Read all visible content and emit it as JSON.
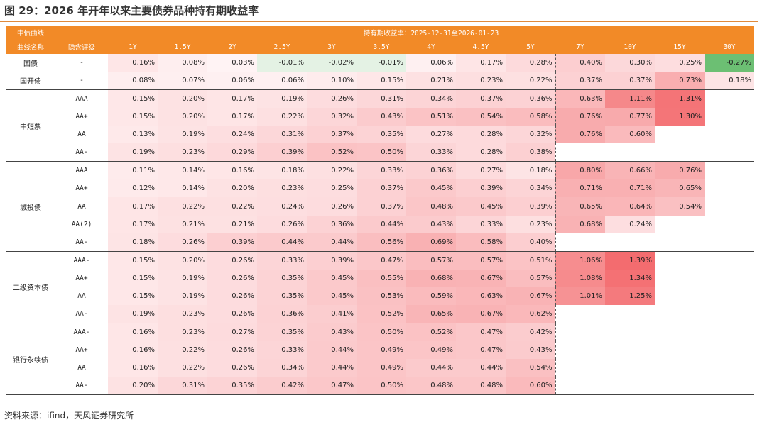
{
  "title": "图 29：2026 年开年以来主要债券品种持有期收益率",
  "source": "资料来源：ifind，天风证券研究所",
  "header": {
    "col1_top": "中债曲线",
    "period_label": "持有期收益率：2025-12-31至2026-01-23",
    "col1": "曲线名称",
    "col2": "隐含评级"
  },
  "chart_data": {
    "type": "table",
    "tenors": [
      "1Y",
      "1.5Y",
      "2Y",
      "2.5Y",
      "3Y",
      "3.5Y",
      "4Y",
      "4.5Y",
      "5Y",
      "7Y",
      "10Y",
      "15Y",
      "30Y"
    ],
    "unit": "%",
    "groups": [
      {
        "name": "国债",
        "rows": [
          {
            "rating": "-",
            "values": [
              0.16,
              0.08,
              0.03,
              -0.01,
              -0.02,
              -0.01,
              0.06,
              0.17,
              0.28,
              0.4,
              0.3,
              0.25,
              -0.27
            ]
          }
        ]
      },
      {
        "name": "国开债",
        "rows": [
          {
            "rating": "-",
            "values": [
              0.08,
              0.07,
              0.06,
              0.06,
              0.1,
              0.15,
              0.21,
              0.23,
              0.22,
              0.37,
              0.37,
              0.73,
              0.18
            ]
          }
        ]
      },
      {
        "name": "中短票",
        "rows": [
          {
            "rating": "AAA",
            "values": [
              0.15,
              0.2,
              0.17,
              0.19,
              0.26,
              0.31,
              0.34,
              0.37,
              0.36,
              0.63,
              1.11,
              1.31,
              null
            ]
          },
          {
            "rating": "AA+",
            "values": [
              0.15,
              0.2,
              0.17,
              0.22,
              0.32,
              0.43,
              0.51,
              0.54,
              0.58,
              0.76,
              0.77,
              1.3,
              null
            ]
          },
          {
            "rating": "AA",
            "values": [
              0.13,
              0.19,
              0.24,
              0.31,
              0.37,
              0.35,
              0.27,
              0.28,
              0.32,
              0.76,
              0.6,
              null,
              null
            ]
          },
          {
            "rating": "AA-",
            "values": [
              0.19,
              0.23,
              0.29,
              0.39,
              0.52,
              0.5,
              0.33,
              0.28,
              0.38,
              null,
              null,
              null,
              null
            ]
          }
        ]
      },
      {
        "name": "城投债",
        "rows": [
          {
            "rating": "AAA",
            "values": [
              0.11,
              0.14,
              0.16,
              0.18,
              0.22,
              0.33,
              0.36,
              0.27,
              0.18,
              0.8,
              0.66,
              0.76,
              null
            ]
          },
          {
            "rating": "AA+",
            "values": [
              0.12,
              0.14,
              0.2,
              0.23,
              0.25,
              0.37,
              0.45,
              0.39,
              0.34,
              0.71,
              0.71,
              0.65,
              null
            ]
          },
          {
            "rating": "AA",
            "values": [
              0.17,
              0.22,
              0.22,
              0.24,
              0.26,
              0.37,
              0.48,
              0.45,
              0.39,
              0.65,
              0.64,
              0.54,
              null
            ]
          },
          {
            "rating": "AA(2)",
            "values": [
              0.17,
              0.21,
              0.21,
              0.26,
              0.36,
              0.44,
              0.43,
              0.33,
              0.23,
              0.68,
              0.24,
              null,
              null
            ]
          },
          {
            "rating": "AA-",
            "values": [
              0.18,
              0.26,
              0.39,
              0.44,
              0.44,
              0.56,
              0.69,
              0.58,
              0.4,
              null,
              null,
              null,
              null
            ]
          }
        ]
      },
      {
        "name": "二级资本债",
        "rows": [
          {
            "rating": "AAA-",
            "values": [
              0.15,
              0.2,
              0.26,
              0.33,
              0.39,
              0.47,
              0.57,
              0.57,
              0.51,
              1.06,
              1.39,
              null,
              null
            ]
          },
          {
            "rating": "AA+",
            "values": [
              0.15,
              0.19,
              0.26,
              0.35,
              0.45,
              0.55,
              0.68,
              0.67,
              0.57,
              1.08,
              1.34,
              null,
              null
            ]
          },
          {
            "rating": "AA",
            "values": [
              0.15,
              0.19,
              0.26,
              0.35,
              0.45,
              0.53,
              0.59,
              0.63,
              0.67,
              1.01,
              1.25,
              null,
              null
            ]
          },
          {
            "rating": "AA-",
            "values": [
              0.19,
              0.23,
              0.26,
              0.36,
              0.41,
              0.52,
              0.65,
              0.67,
              0.62,
              null,
              null,
              null,
              null
            ]
          }
        ]
      },
      {
        "name": "银行永续债",
        "rows": [
          {
            "rating": "AAA-",
            "values": [
              0.16,
              0.23,
              0.27,
              0.35,
              0.43,
              0.5,
              0.52,
              0.47,
              0.42,
              null,
              null,
              null,
              null
            ]
          },
          {
            "rating": "AA+",
            "values": [
              0.16,
              0.22,
              0.26,
              0.33,
              0.44,
              0.49,
              0.49,
              0.47,
              0.43,
              null,
              null,
              null,
              null
            ]
          },
          {
            "rating": "AA",
            "values": [
              0.16,
              0.22,
              0.26,
              0.34,
              0.44,
              0.49,
              0.44,
              0.44,
              0.54,
              null,
              null,
              null,
              null
            ]
          },
          {
            "rating": "AA-",
            "values": [
              0.2,
              0.31,
              0.35,
              0.42,
              0.47,
              0.5,
              0.48,
              0.48,
              0.6,
              null,
              null,
              null,
              null
            ]
          }
        ]
      }
    ]
  },
  "colors": {
    "header_bg": "#f28a27",
    "heat_high": "#f36b6e",
    "heat_low": "#ffffff",
    "negative": "#6cbf73",
    "negative_light": "#e4f2e4"
  }
}
